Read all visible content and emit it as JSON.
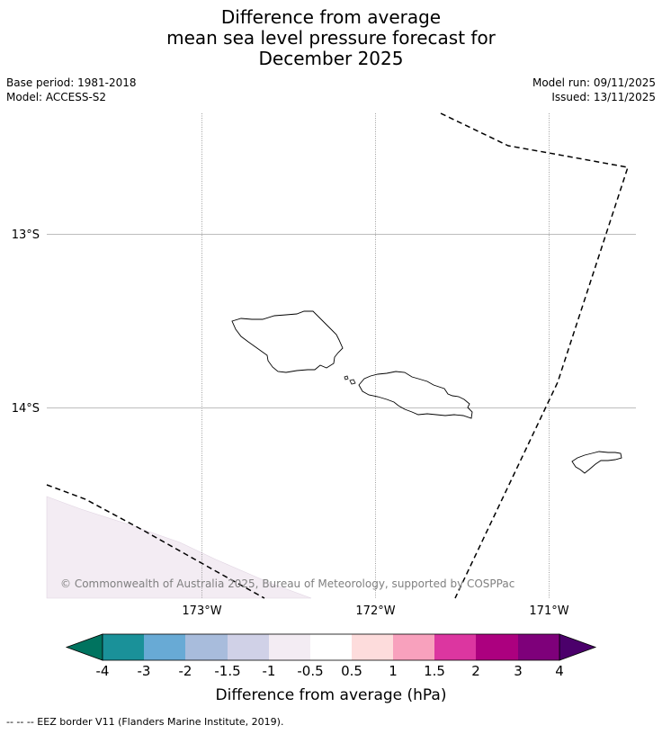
{
  "title": {
    "line1": "Difference from average",
    "line2": "mean sea level pressure forecast for",
    "line3": "December 2025"
  },
  "meta": {
    "base_period": "Base period: 1981-2018",
    "model": "Model: ACCESS-S2",
    "model_run": "Model run: 09/11/2025",
    "issued": "Issued: 13/11/2025"
  },
  "map": {
    "longitude_labels": [
      "173°W",
      "172°W",
      "171°W"
    ],
    "latitude_labels": [
      "13°S",
      "14°S"
    ],
    "copyright": "© Commonwealth of Australia 2025, Bureau of Meteorology, supported by COSPPac",
    "anomaly_shading_color": "#f3ecf3"
  },
  "colorbar": {
    "label": "Difference from average (hPa)",
    "tick_labels": [
      "-4",
      "-3",
      "-2",
      "-1.5",
      "-1",
      "-0.5",
      "0.5",
      "1",
      "1.5",
      "2",
      "3",
      "4"
    ],
    "under_color": "#00735f",
    "over_color": "#4b006b",
    "bin_colors": [
      "#1a9199",
      "#68aad5",
      "#a8bcdc",
      "#d0d1e7",
      "#f3ecf3",
      "#ffffff",
      "#fddcdc",
      "#f8a1bd",
      "#dc36a0",
      "#ac007f",
      "#7e007a"
    ]
  },
  "footer": {
    "legend_note": "--  --  -- EEZ border V11 (Flanders Marine Institute, 2019)."
  }
}
